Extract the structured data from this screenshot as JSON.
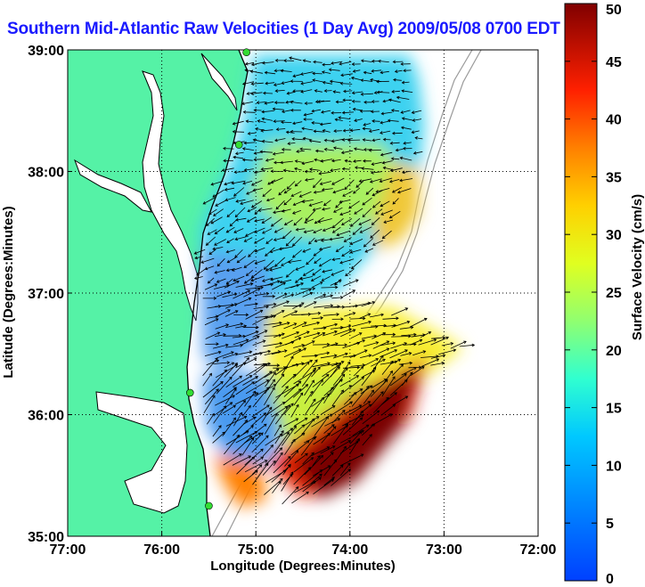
{
  "title": "Southern Mid-Atlantic Raw Velocities (1 Day Avg) 2009/05/08 0700 EDT",
  "colors": {
    "land": "#55f2a6",
    "coast": "#000000",
    "grid": "#000000",
    "bathymetry": "#9a9a9a",
    "stations": "#33dd33"
  },
  "chart_data": {
    "type": "heatmap",
    "title": "Southern Mid-Atlantic Raw Velocities (1 Day Avg) 2009/05/08 0700 EDT",
    "xlabel": "Longitude (Degrees:Minutes)",
    "ylabel": "Latitude (Degrees:Minutes)",
    "xlim": [
      -77,
      -72
    ],
    "ylim": [
      35,
      39
    ],
    "x_ticks": [
      {
        "v": -77,
        "label": "77:00"
      },
      {
        "v": -76,
        "label": "76:00"
      },
      {
        "v": -75,
        "label": "75:00"
      },
      {
        "v": -74,
        "label": "74:00"
      },
      {
        "v": -73,
        "label": "73:00"
      },
      {
        "v": -72,
        "label": "72:00"
      }
    ],
    "y_ticks": [
      {
        "v": 35,
        "label": "35:00"
      },
      {
        "v": 36,
        "label": "36:00"
      },
      {
        "v": 37,
        "label": "37:00"
      },
      {
        "v": 38,
        "label": "38:00"
      },
      {
        "v": 39,
        "label": "39:00"
      }
    ],
    "grid": "dotted",
    "colorbar": {
      "label": "Surface Velocity (cm/s)",
      "min": 0,
      "max": 50,
      "ticks": [
        0,
        5,
        10,
        15,
        20,
        25,
        30,
        35,
        40,
        45,
        50
      ],
      "tick_labels": [
        "0",
        "5",
        "10",
        "15",
        "20",
        "25",
        "30",
        "35",
        "40",
        "45",
        "50"
      ],
      "colormap": "jet"
    },
    "stations": [
      {
        "lon": -75.1,
        "lat": 38.98
      },
      {
        "lon": -75.18,
        "lat": 38.22
      },
      {
        "lon": -75.7,
        "lat": 36.18
      },
      {
        "lon": -75.5,
        "lat": 35.25
      }
    ]
  }
}
